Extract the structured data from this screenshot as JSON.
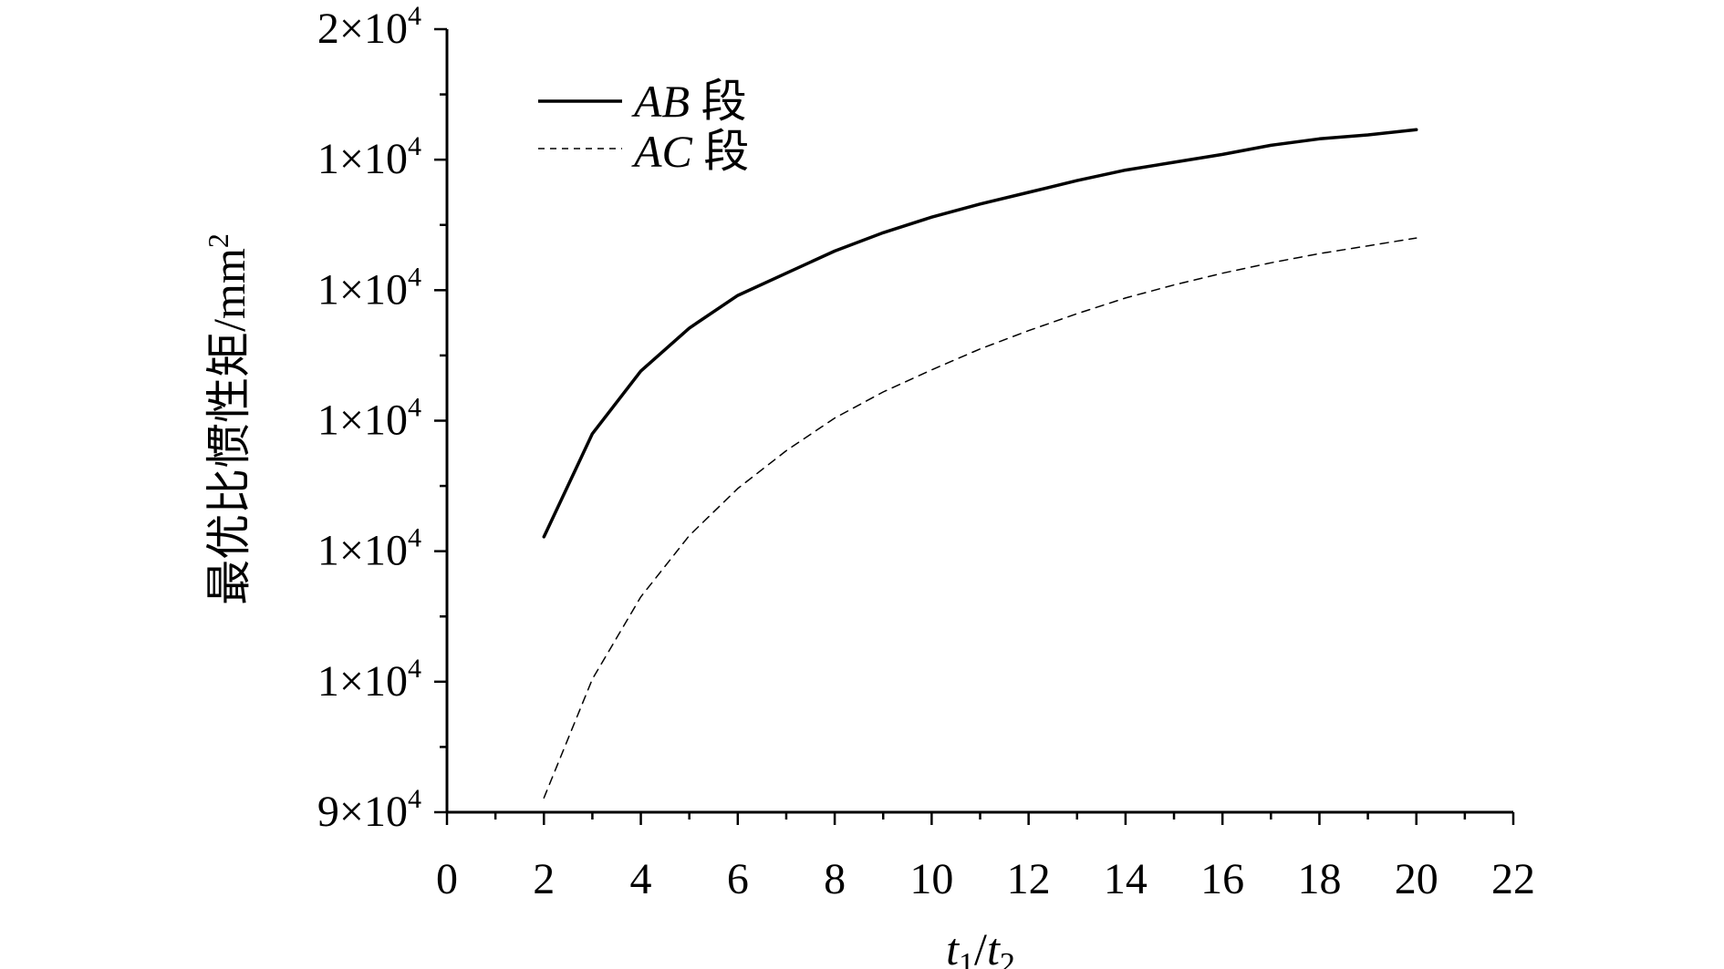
{
  "chart_data": {
    "type": "line",
    "title": "",
    "xlabel": {
      "main": "t",
      "sub1": "1",
      "sep": "/",
      "main2": "t",
      "sub2": "2"
    },
    "ylabel": {
      "main": "最优比惯性矩/mm",
      "sup": "2"
    },
    "xlim": [
      0,
      22
    ],
    "x_ticks": [
      "0",
      "2",
      "4",
      "6",
      "8",
      "10",
      "12",
      "14",
      "16",
      "18",
      "20",
      "22"
    ],
    "y_scale_note": "uniform; tick positions 0 (bottom) to 6 (top)",
    "ylim": [
      0,
      6
    ],
    "y_ticks": [
      {
        "mant": "9×10",
        "exp": "4"
      },
      {
        "mant": "1×10",
        "exp": "4"
      },
      {
        "mant": "1×10",
        "exp": "4"
      },
      {
        "mant": "1×10",
        "exp": "4"
      },
      {
        "mant": "1×10",
        "exp": "4"
      },
      {
        "mant": "1×10",
        "exp": "4"
      },
      {
        "mant": "2×10",
        "exp": "4"
      }
    ],
    "grid": false,
    "legend_position": "top-left",
    "series": [
      {
        "name": "AB",
        "suffix": " 段",
        "style": "solid",
        "color": "#000000",
        "x": [
          2,
          3,
          4,
          5,
          6,
          7,
          8,
          9,
          10,
          11,
          12,
          13,
          14,
          15,
          16,
          17,
          18,
          19,
          20
        ],
        "y": [
          2.11,
          2.9,
          3.38,
          3.71,
          3.96,
          4.13,
          4.3,
          4.44,
          4.56,
          4.66,
          4.75,
          4.84,
          4.92,
          4.98,
          5.04,
          5.11,
          5.16,
          5.19,
          5.23
        ]
      },
      {
        "name": "AC",
        "suffix": " 段",
        "style": "dashed",
        "color": "#000000",
        "x": [
          2,
          3,
          4,
          5,
          6,
          7,
          8,
          9,
          10,
          11,
          12,
          13,
          14,
          15,
          16,
          17,
          18,
          19,
          20
        ],
        "y": [
          0.11,
          1.02,
          1.65,
          2.12,
          2.48,
          2.77,
          3.02,
          3.22,
          3.39,
          3.55,
          3.69,
          3.82,
          3.94,
          4.04,
          4.13,
          4.21,
          4.28,
          4.34,
          4.4
        ]
      }
    ]
  }
}
